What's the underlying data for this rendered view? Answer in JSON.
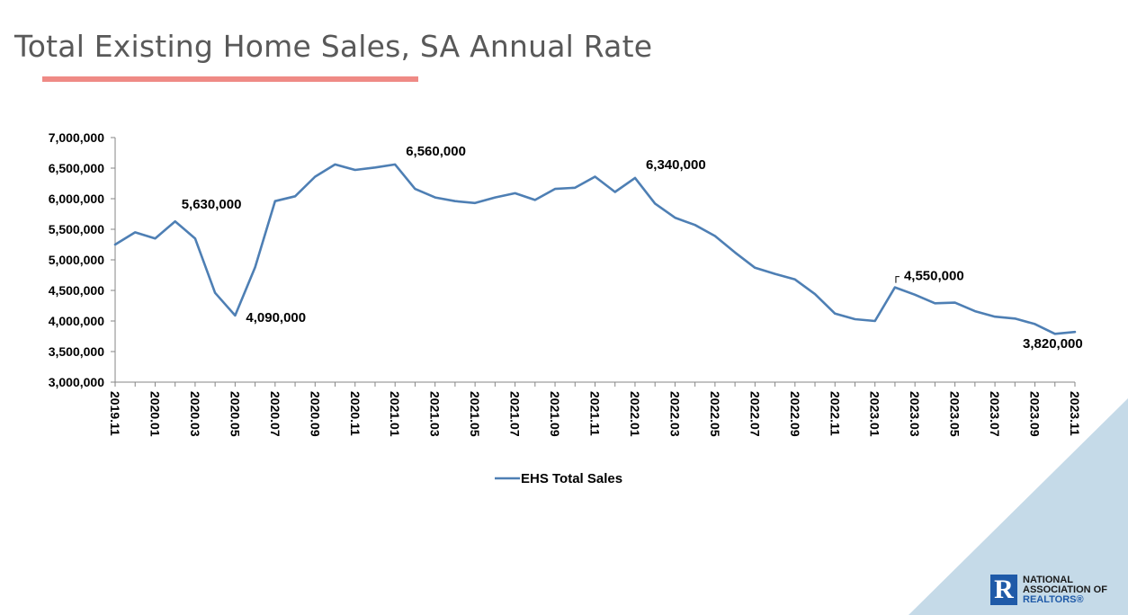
{
  "page": {
    "title": "Total Existing Home Sales, SA Annual Rate"
  },
  "logo": {
    "mark": "R",
    "line1": "NATIONAL",
    "line2": "ASSOCIATION OF",
    "line3": "REALTORS®"
  },
  "colors": {
    "series": "#4e7fb4",
    "title_rule": "#ef8a85",
    "corner": "#c5dae8",
    "logo": "#1f5aa8"
  },
  "chart_data": {
    "type": "line",
    "title": "",
    "xlabel": "",
    "ylabel": "",
    "ylim": [
      3000000,
      7000000
    ],
    "yticks": [
      "3,000,000",
      "3,500,000",
      "4,000,000",
      "4,500,000",
      "5,000,000",
      "5,500,000",
      "6,000,000",
      "6,500,000",
      "7,000,000"
    ],
    "x": [
      "2019.11",
      "2019.12",
      "2020.01",
      "2020.02",
      "2020.03",
      "2020.04",
      "2020.05",
      "2020.06",
      "2020.07",
      "2020.08",
      "2020.09",
      "2020.10",
      "2020.11",
      "2020.12",
      "2021.01",
      "2021.02",
      "2021.03",
      "2021.04",
      "2021.05",
      "2021.06",
      "2021.07",
      "2021.08",
      "2021.09",
      "2021.10",
      "2021.11",
      "2021.12",
      "2022.01",
      "2022.02",
      "2022.03",
      "2022.04",
      "2022.05",
      "2022.06",
      "2022.07",
      "2022.08",
      "2022.09",
      "2022.10",
      "2022.11",
      "2022.12",
      "2023.01",
      "2023.02",
      "2023.03",
      "2023.04",
      "2023.05",
      "2023.06",
      "2023.07",
      "2023.08",
      "2023.09",
      "2023.10",
      "2023.11"
    ],
    "x_tick_labels": [
      "2019.11",
      "2020.01",
      "2020.03",
      "2020.05",
      "2020.07",
      "2020.09",
      "2020.11",
      "2021.01",
      "2021.03",
      "2021.05",
      "2021.07",
      "2021.09",
      "2021.11",
      "2022.01",
      "2022.03",
      "2022.05",
      "2022.07",
      "2022.09",
      "2022.11",
      "2023.01",
      "2023.03",
      "2023.05",
      "2023.07",
      "2023.09",
      "2023.11"
    ],
    "series": [
      {
        "name": "EHS Total Sales",
        "values": [
          5250000,
          5450000,
          5350000,
          5630000,
          5350000,
          4460000,
          4090000,
          4880000,
          5960000,
          6040000,
          6360000,
          6560000,
          6470000,
          6510000,
          6560000,
          6160000,
          6020000,
          5960000,
          5930000,
          6020000,
          6090000,
          5980000,
          6160000,
          6180000,
          6360000,
          6110000,
          6340000,
          5920000,
          5690000,
          5570000,
          5390000,
          5120000,
          4870000,
          4770000,
          4680000,
          4440000,
          4120000,
          4030000,
          4000000,
          4550000,
          4430000,
          4290000,
          4300000,
          4160000,
          4070000,
          4040000,
          3950000,
          3790000,
          3820000
        ]
      }
    ],
    "annotations": [
      {
        "index": 3,
        "label": "5,630,000"
      },
      {
        "index": 6,
        "label": "4,090,000"
      },
      {
        "index": 14,
        "label": "6,560,000"
      },
      {
        "index": 26,
        "label": "6,340,000"
      },
      {
        "index": 39,
        "label": "4,550,000"
      },
      {
        "index": 48,
        "label": "3,820,000"
      }
    ],
    "legend": {
      "position": "bottom",
      "label": "EHS Total Sales"
    },
    "grid": false
  }
}
